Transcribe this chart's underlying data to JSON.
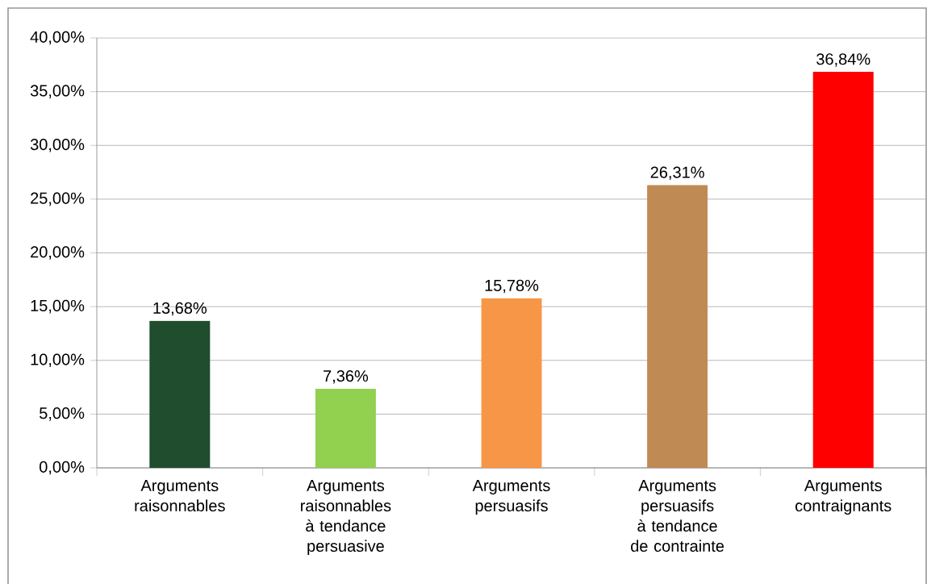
{
  "chart_data": {
    "type": "bar",
    "categories": [
      "Arguments raisonnables",
      "Arguments raisonnables à tendance persuasive",
      "Arguments persuasifs",
      "Arguments persuasifs  à tendance  de contrainte",
      "Arguments contraignants"
    ],
    "values": [
      13.68,
      7.36,
      15.78,
      26.31,
      36.84
    ],
    "value_labels": [
      "13,68%",
      "7,36%",
      "15,78%",
      "26,31%",
      "36,84%"
    ],
    "colors": [
      "#1f4d2e",
      "#92d050",
      "#f79646",
      "#c08a55",
      "#ff0000"
    ],
    "ylim": [
      0,
      40
    ],
    "yticks": [
      {
        "value": 0,
        "label": "0,00%"
      },
      {
        "value": 5,
        "label": "5,00%"
      },
      {
        "value": 10,
        "label": "10,00%"
      },
      {
        "value": 15,
        "label": "15,00%"
      },
      {
        "value": 20,
        "label": "20,00%"
      },
      {
        "value": 25,
        "label": "25,00%"
      },
      {
        "value": 30,
        "label": "30,00%"
      },
      {
        "value": 35,
        "label": "35,00%"
      },
      {
        "value": 40,
        "label": "40,00%"
      }
    ],
    "grid": "y"
  }
}
